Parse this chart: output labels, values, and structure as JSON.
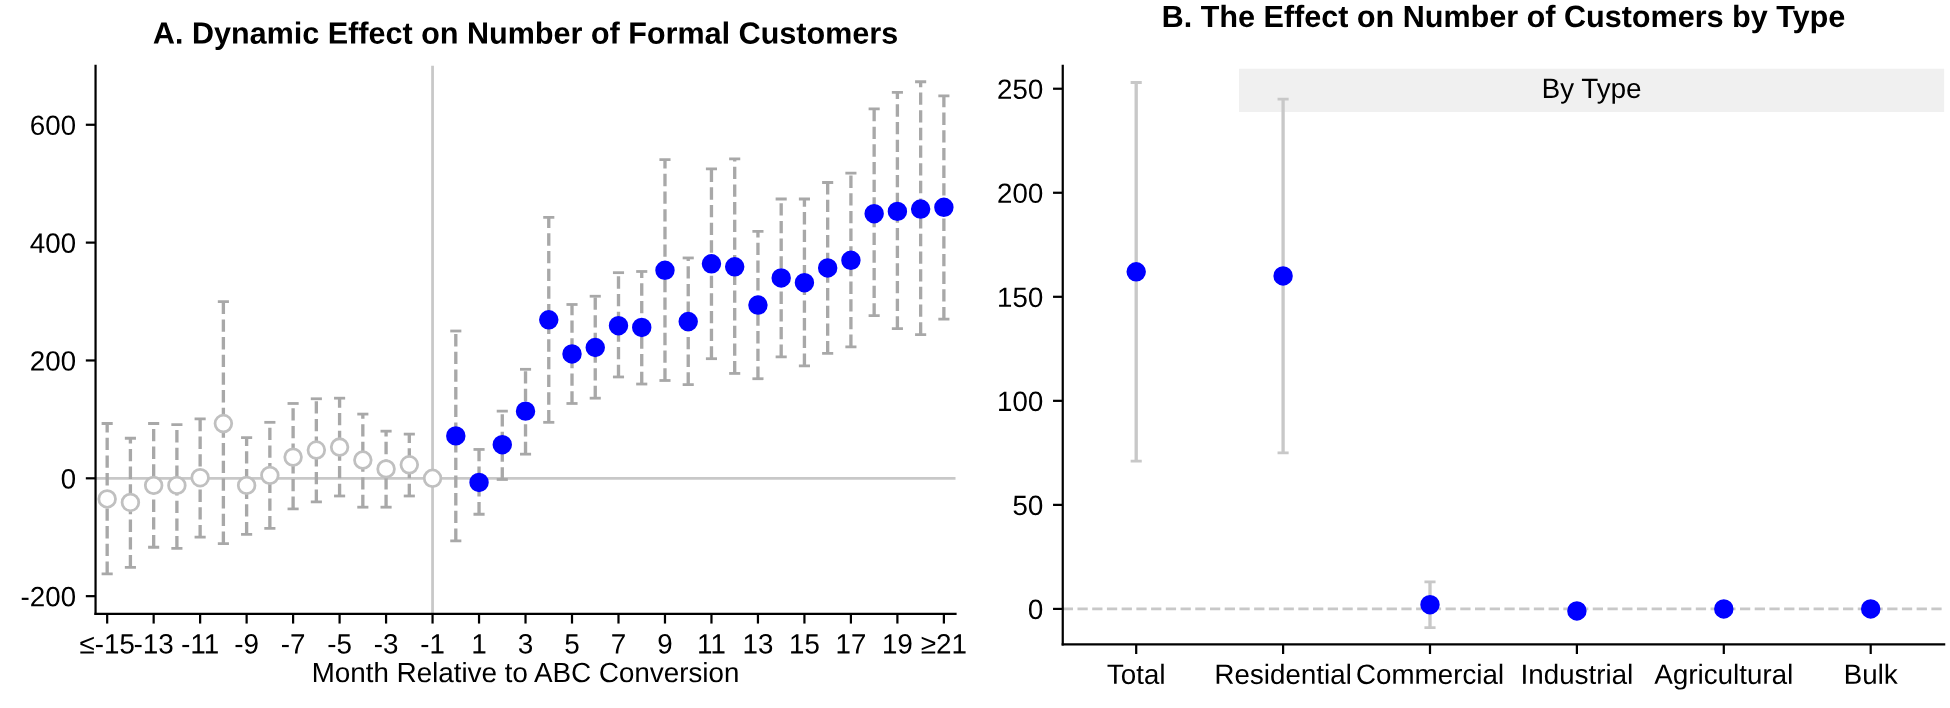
{
  "chart_data": [
    {
      "type": "scatter",
      "title": "A. Dynamic Effect on Number of Formal Customers",
      "xlabel": "Month Relative to ABC Conversion",
      "marker": "circle",
      "grid": false,
      "legend": false,
      "xlim": [
        -15.5,
        21.5
      ],
      "ylim": [
        -230,
        700
      ],
      "xticks": [
        {
          "value": -15,
          "label": "≤-15"
        },
        -13,
        -11,
        -9,
        -7,
        -5,
        -3,
        -1,
        1,
        3,
        5,
        7,
        9,
        11,
        13,
        15,
        17,
        19,
        {
          "value": 21,
          "label": "≥21"
        }
      ],
      "yticks": [
        -200,
        0,
        200,
        400,
        600
      ],
      "ref_lines": [
        {
          "axis": "x",
          "value": -1,
          "color": "#c8c8c8"
        },
        {
          "axis": "y",
          "value": 0,
          "color": "#c8c8c8"
        }
      ],
      "series": [
        {
          "color": "#c0c0c0",
          "x": [
            -15,
            -14,
            -13,
            -12,
            -11,
            -10,
            -9,
            -8,
            -7,
            -6,
            -5,
            -4,
            -3,
            -2,
            -1
          ],
          "values": [
            -35,
            -41,
            -12,
            -12,
            1,
            93,
            -12,
            5,
            36,
            48,
            53,
            31,
            16,
            23,
            0
          ],
          "errors": [
            [
              -162,
              93
            ],
            [
              -151,
              68
            ],
            [
              -117,
              93
            ],
            [
              -119,
              91
            ],
            [
              -100,
              101
            ],
            [
              -111,
              300
            ],
            [
              -95,
              69
            ],
            [
              -85,
              95
            ],
            [
              -52,
              127
            ],
            [
              -40,
              135
            ],
            [
              -30,
              136
            ],
            [
              -49,
              109
            ],
            [
              -49,
              80
            ],
            [
              -30,
              75
            ],
            null
          ]
        },
        {
          "color": "#0000ff",
          "x": [
            0,
            1,
            2,
            3,
            4,
            5,
            6,
            7,
            8,
            9,
            10,
            11,
            12,
            13,
            14,
            15,
            16,
            17,
            18,
            19,
            20,
            21
          ],
          "values": [
            72,
            -7,
            57,
            114,
            269,
            211,
            222,
            259,
            256,
            353,
            266,
            364,
            359,
            294,
            340,
            332,
            357,
            370,
            449,
            453,
            457,
            460
          ],
          "errors": [
            [
              -106,
              250
            ],
            [
              -61,
              49
            ],
            [
              -2,
              114
            ],
            [
              41,
              185
            ],
            [
              95,
              443
            ],
            [
              127,
              295
            ],
            [
              136,
              309
            ],
            [
              172,
              349
            ],
            [
              160,
              351
            ],
            [
              166,
              541
            ],
            [
              159,
              374
            ],
            [
              203,
              525
            ],
            [
              178,
              542
            ],
            [
              169,
              419
            ],
            [
              206,
              474
            ],
            [
              191,
              474
            ],
            [
              212,
              502
            ],
            [
              223,
              518
            ],
            [
              276,
              627
            ],
            [
              254,
              655
            ],
            [
              244,
              673
            ],
            [
              270,
              649
            ]
          ]
        }
      ]
    },
    {
      "type": "scatter",
      "title": "B. The Effect on Number of Customers by Type",
      "annotations": [
        "By Type"
      ],
      "marker": "circle",
      "grid": false,
      "legend": false,
      "categories": [
        "Total",
        "Residential",
        "Commercial",
        "Industrial",
        "Agricultural",
        "Bulk"
      ],
      "ylim": [
        -17,
        261
      ],
      "yticks": [
        0,
        50,
        100,
        150,
        200,
        250
      ],
      "ref_lines": [
        {
          "axis": "y",
          "value": 0,
          "color": "#c8c8c8",
          "line_style": "dashed"
        }
      ],
      "series": [
        {
          "color": "#0000ff",
          "values": [
            162,
            160,
            2,
            -1,
            0,
            0
          ],
          "errors": [
            [
              71,
              253
            ],
            [
              75,
              245
            ],
            [
              -9,
              13
            ],
            null,
            null,
            null
          ]
        }
      ]
    }
  ]
}
